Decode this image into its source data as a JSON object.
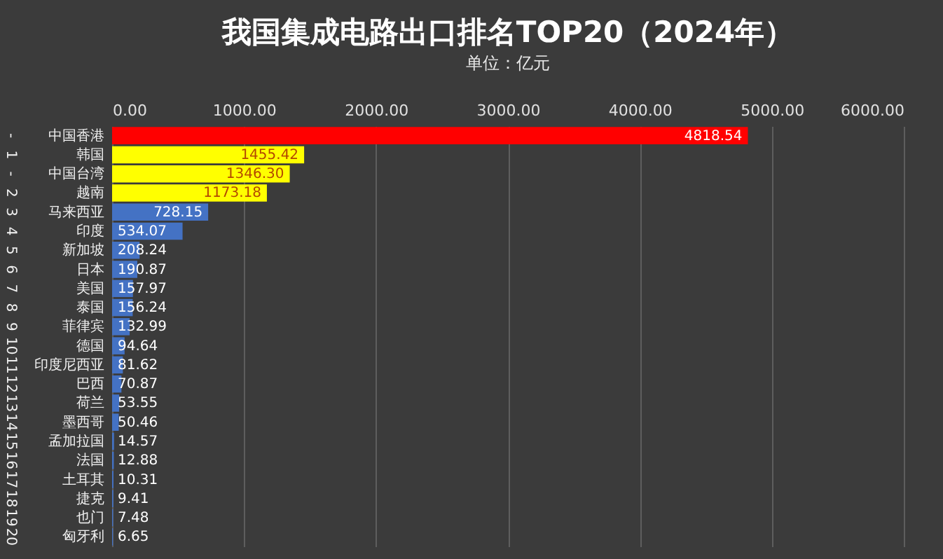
{
  "chart_data": {
    "type": "bar",
    "orientation": "horizontal",
    "title": "我国集成电路出口排名TOP20（2024年）",
    "subtitle": "单位：亿元",
    "categories": [
      "中国香港",
      "韩国",
      "中国台湾",
      "越南",
      "马来西亚",
      "印度",
      "新加坡",
      "日本",
      "美国",
      "泰国",
      "菲律宾",
      "德国",
      "印度尼西亚",
      "巴西",
      "荷兰",
      "墨西哥",
      "孟加拉国",
      "法国",
      "土耳其",
      "捷克",
      "也门",
      "匈牙利"
    ],
    "values": [
      4818.54,
      1455.42,
      1346.3,
      1173.18,
      728.15,
      534.07,
      208.24,
      190.87,
      157.97,
      156.24,
      132.99,
      94.64,
      81.62,
      70.87,
      53.55,
      50.46,
      14.57,
      12.88,
      10.31,
      9.41,
      7.48,
      6.65
    ],
    "colors": [
      "#ff0000",
      "#ffff00",
      "#ffff00",
      "#ffff00",
      "#4472c4",
      "#4472c4",
      "#4472c4",
      "#4472c4",
      "#4472c4",
      "#4472c4",
      "#4472c4",
      "#4472c4",
      "#4472c4",
      "#4472c4",
      "#4472c4",
      "#4472c4",
      "#4472c4",
      "#4472c4",
      "#4472c4",
      "#4472c4",
      "#4472c4",
      "#4472c4"
    ],
    "value_labels": [
      "4818.54",
      "1455.42",
      "1346.30",
      "1173.18",
      "728.15",
      "534.07",
      "208.24",
      "190.87",
      "157.97",
      "156.24",
      "132.99",
      "94.64",
      "81.62",
      "70.87",
      "53.55",
      "50.46",
      "14.57",
      "12.88",
      "10.31",
      "9.41",
      "7.48",
      "6.65"
    ],
    "xlim": [
      0,
      6000
    ],
    "xticks": [
      {
        "value": 0,
        "label": "0.00"
      },
      {
        "value": 1000,
        "label": "1000.00"
      },
      {
        "value": 2000,
        "label": "2000.00"
      },
      {
        "value": 3000,
        "label": "3000.00"
      },
      {
        "value": 4000,
        "label": "4000.00"
      },
      {
        "value": 5000,
        "label": "5000.00"
      },
      {
        "value": 6000,
        "label": "6000.00"
      }
    ],
    "grid": "x",
    "annotations": [
      "-",
      "1",
      "-",
      "2",
      "3",
      "4",
      "5",
      "6",
      "7",
      "8",
      "9",
      "10",
      "11",
      "12",
      "13",
      "14",
      "15",
      "16",
      "17",
      "18",
      "19",
      "20"
    ]
  }
}
